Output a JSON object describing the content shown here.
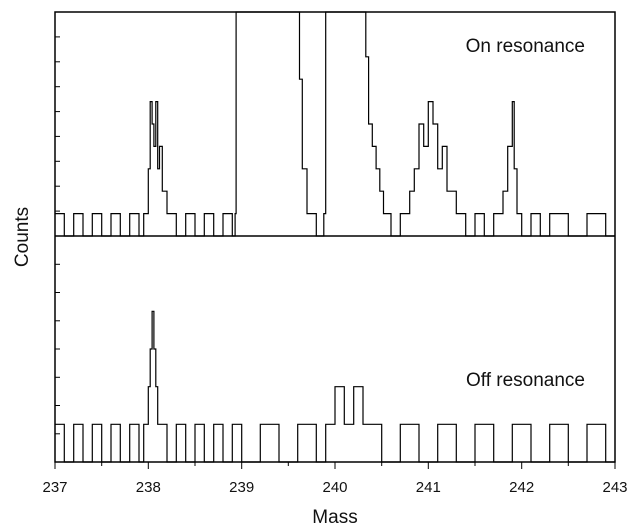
{
  "chart_data": {
    "type": "line",
    "xlabel": "Mass",
    "ylabel": "Counts",
    "xlim": [
      237,
      243
    ],
    "x_ticks": [
      "237",
      "238",
      "239",
      "240",
      "241",
      "242",
      "243"
    ],
    "grid": false,
    "legend": "none",
    "panels": [
      {
        "label": "On resonance",
        "ylim": [
          0,
          10
        ],
        "series": [
          {
            "x": [
              237.0,
              237.1,
              237.2,
              237.3,
              237.4,
              237.5,
              237.6,
              237.7,
              237.8,
              237.9,
              237.95,
              238.0,
              238.02,
              238.04,
              238.06,
              238.08,
              238.1,
              238.12,
              238.15,
              238.2,
              238.3,
              238.4,
              238.5,
              238.6,
              238.7,
              238.8,
              238.9,
              238.93,
              238.94,
              239.6,
              239.62,
              239.65,
              239.7,
              239.8,
              239.88,
              239.9,
              240.3,
              240.33,
              240.36,
              240.4,
              240.44,
              240.48,
              240.52,
              240.6,
              240.7,
              240.8,
              240.85,
              240.9,
              240.95,
              241.0,
              241.05,
              241.1,
              241.15,
              241.2,
              241.3,
              241.4,
              241.5,
              241.6,
              241.7,
              241.8,
              241.85,
              241.9,
              241.92,
              241.95,
              242.0,
              242.1,
              242.2,
              242.3,
              242.5,
              242.7,
              242.9,
              243.0
            ],
            "y": [
              1,
              0,
              1,
              0,
              1,
              0,
              1,
              0,
              1,
              0,
              1,
              3,
              6,
              5,
              4,
              6,
              3,
              4,
              2,
              1,
              0,
              1,
              0,
              1,
              0,
              1,
              0,
              1,
              11,
              11,
              7,
              3,
              1,
              0,
              1,
              11,
              11,
              8,
              5,
              4,
              3,
              2,
              1,
              0,
              1,
              2,
              3,
              5,
              4,
              6,
              5,
              3,
              4,
              2,
              1,
              0,
              1,
              0,
              1,
              2,
              4,
              6,
              3,
              1,
              0,
              1,
              0,
              1,
              0,
              1,
              0,
              0
            ]
          }
        ]
      },
      {
        "label": "Off resonance",
        "ylim": [
          0,
          6
        ],
        "series": [
          {
            "x": [
              237.0,
              237.1,
              237.2,
              237.3,
              237.4,
              237.5,
              237.6,
              237.7,
              237.8,
              237.9,
              237.95,
              238.0,
              238.02,
              238.04,
              238.06,
              238.08,
              238.1,
              238.15,
              238.2,
              238.3,
              238.4,
              238.5,
              238.6,
              238.7,
              238.8,
              238.9,
              239.0,
              239.2,
              239.4,
              239.6,
              239.8,
              239.9,
              240.0,
              240.1,
              240.2,
              240.3,
              240.5,
              240.7,
              240.9,
              241.1,
              241.3,
              241.5,
              241.7,
              241.9,
              242.1,
              242.3,
              242.5,
              242.7,
              242.9,
              243.0
            ],
            "y": [
              1,
              0,
              1,
              0,
              1,
              0,
              1,
              0,
              1,
              0,
              1,
              2,
              3,
              4,
              3,
              2,
              1,
              1,
              0,
              1,
              0,
              1,
              0,
              1,
              0,
              1,
              0,
              1,
              0,
              1,
              0,
              1,
              2,
              1,
              2,
              1,
              0,
              1,
              0,
              1,
              0,
              1,
              0,
              1,
              0,
              1,
              0,
              1,
              0,
              0
            ]
          }
        ]
      }
    ]
  }
}
